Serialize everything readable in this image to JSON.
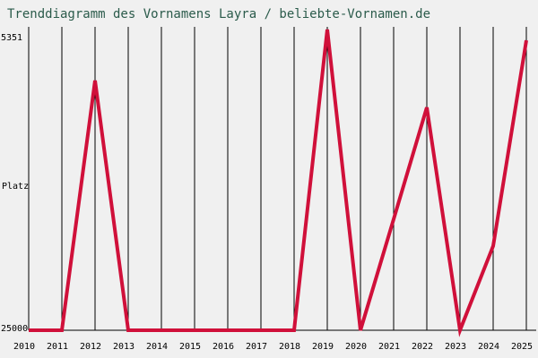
{
  "chart_data": {
    "type": "line",
    "title": "Trenddiagramm des Vornamens Layra / beliebte-Vornamen.de",
    "y_label": "Platz",
    "x": [
      2010,
      2011,
      2012,
      2013,
      2014,
      2015,
      2016,
      2017,
      2018,
      2019,
      2020,
      2021,
      2022,
      2023,
      2024,
      2025
    ],
    "series": [
      {
        "name": "Layra",
        "color": "#d0103a",
        "values": [
          25000,
          25000,
          8340,
          25000,
          25000,
          25000,
          25000,
          25000,
          25000,
          4930,
          25000,
          17590,
          10130,
          25000,
          19380,
          5650
        ]
      }
    ],
    "xlim": [
      2010,
      2025
    ],
    "xticks": [
      2010,
      2011,
      2012,
      2013,
      2014,
      2015,
      2016,
      2017,
      2018,
      2019,
      2020,
      2021,
      2022,
      2023,
      2024,
      2025
    ],
    "ylim": [
      25000,
      5351
    ],
    "yticks": [
      5351,
      25000
    ],
    "grid": true
  }
}
